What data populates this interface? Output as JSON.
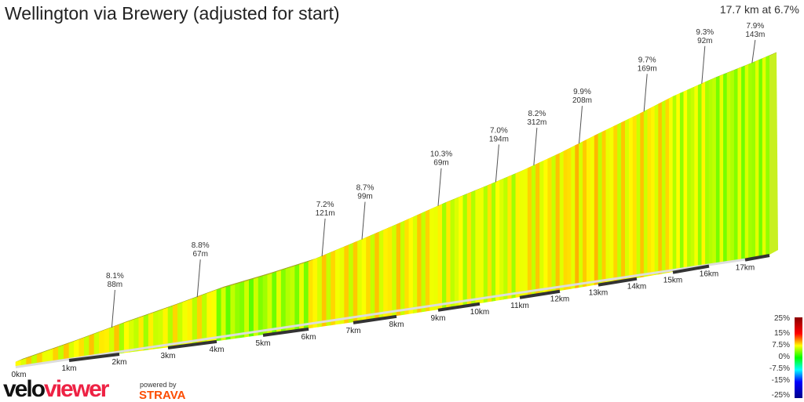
{
  "title": "Wellington via Brewery (adjusted for start)",
  "summary": "17.7 km at 6.7%",
  "branding": {
    "logo_a": "velo",
    "logo_b": "viewer",
    "powered_by": "powered by",
    "strava": "STRAVA"
  },
  "chart_data": {
    "type": "area",
    "title": "Wellington via Brewery (adjusted for start)",
    "xlabel": "",
    "ylabel": "",
    "x_unit": "km",
    "x_ticks": [
      "0km",
      "1km",
      "2km",
      "3km",
      "4km",
      "5km",
      "6km",
      "7km",
      "8km",
      "9km",
      "10km",
      "11km",
      "12km",
      "13km",
      "14km",
      "15km",
      "16km",
      "17km"
    ],
    "distance_km": [
      0,
      1,
      2,
      3,
      4,
      5,
      6,
      7,
      8,
      9,
      10,
      11,
      12,
      13,
      14,
      15,
      16,
      17,
      17.7
    ],
    "elevation_m": [
      0,
      75,
      150,
      215,
      285,
      330,
      380,
      455,
      530,
      605,
      670,
      735,
      810,
      890,
      965,
      1040,
      1100,
      1150,
      1186
    ],
    "annotations": [
      {
        "km": 1.85,
        "gradient": "8.1%",
        "length": "88m"
      },
      {
        "km": 3.6,
        "gradient": "8.8%",
        "length": "67m"
      },
      {
        "km": 6.3,
        "gradient": "7.2%",
        "length": "121m"
      },
      {
        "km": 7.2,
        "gradient": "8.7%",
        "length": "99m"
      },
      {
        "km": 9.0,
        "gradient": "10.3%",
        "length": "69m"
      },
      {
        "km": 10.4,
        "gradient": "7.0%",
        "length": "194m"
      },
      {
        "km": 11.35,
        "gradient": "8.2%",
        "length": "312m"
      },
      {
        "km": 12.5,
        "gradient": "9.9%",
        "length": "208m"
      },
      {
        "km": 14.2,
        "gradient": "9.7%",
        "length": "169m"
      },
      {
        "km": 15.8,
        "gradient": "9.3%",
        "length": "92m"
      },
      {
        "km": 17.2,
        "gradient": "7.9%",
        "length": "143m"
      }
    ],
    "legend": {
      "labels": [
        "25%",
        "15%",
        "7.5%",
        "0%",
        "-7.5%",
        "-15%",
        "-25%"
      ],
      "placement": "bottom-right",
      "colors": [
        "#8b0000",
        "#ff0000",
        "#ffff00",
        "#00ff00",
        "#00ffff",
        "#0000ff",
        "#00008b"
      ]
    }
  }
}
